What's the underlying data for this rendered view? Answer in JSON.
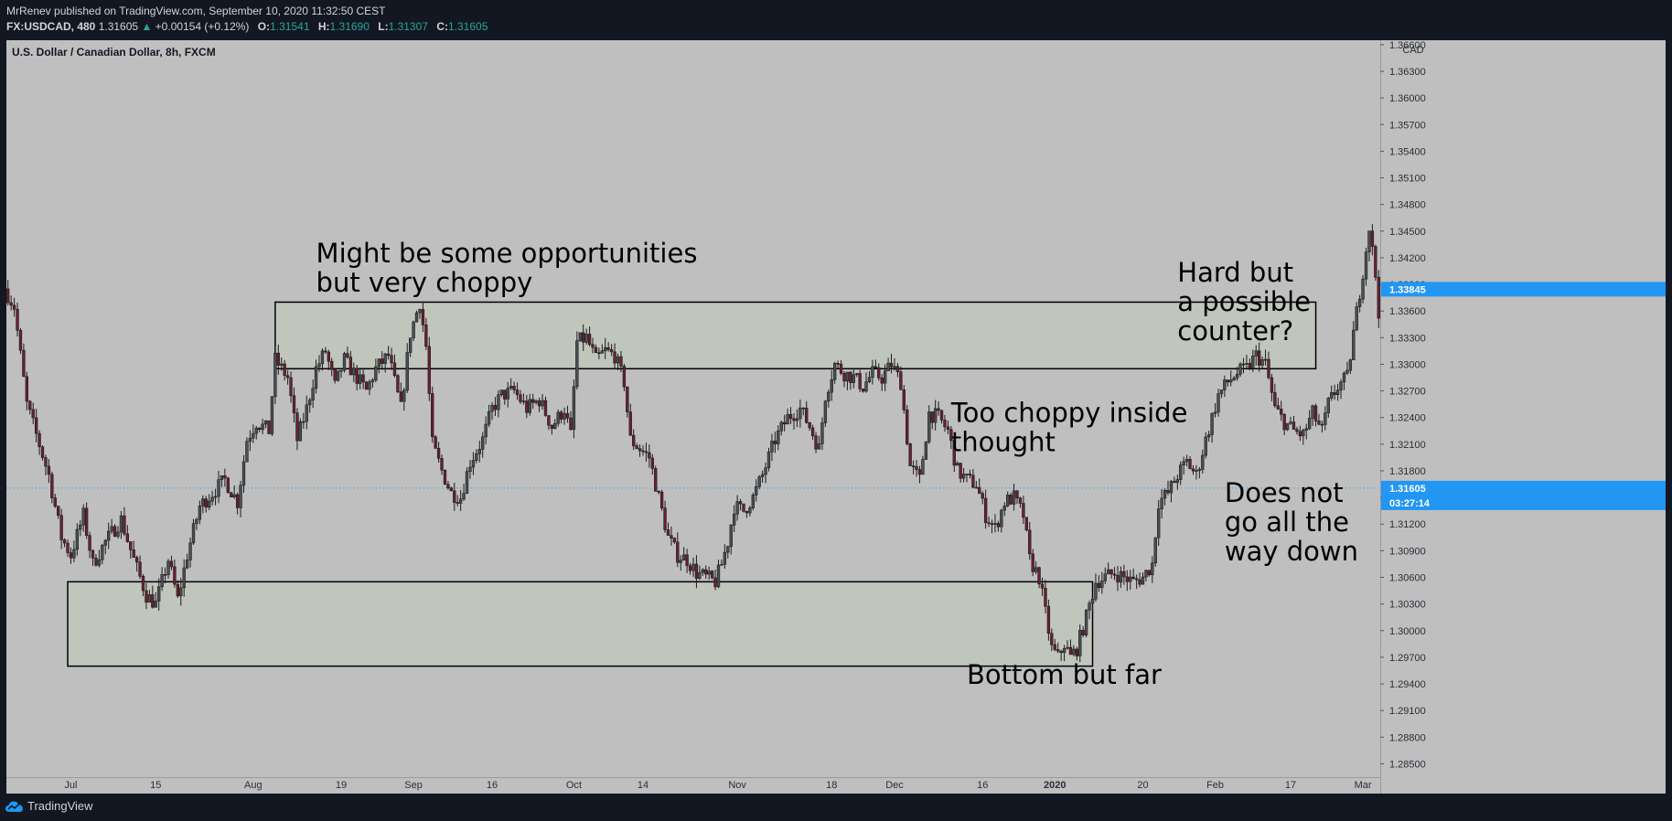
{
  "header": {
    "publisher_line": "MrRenev published on TradingView.com, September 10, 2020 11:32:50 CEST",
    "symbol": "FX:USDCAD, 480",
    "last": "1.31605",
    "change": "+0.00154 (+0.12%)",
    "o_label": "O:",
    "o": "1.31541",
    "h_label": "H:",
    "h": "1.31690",
    "l_label": "L:",
    "l": "1.31307",
    "c_label": "C:",
    "c": "1.31605"
  },
  "footer": {
    "brand": "TradingView"
  },
  "colors": {
    "panel_bg": "#131722",
    "chart_bg": "#bfbfbf",
    "candle": "#1c1c1c",
    "box_fill": "#c0c6bc",
    "accent_up": "#26a69a",
    "price_tag": "#2196f3",
    "pan_text": "#d1d4dc"
  },
  "chart_data": {
    "type": "candlestick",
    "title": "U.S. Dollar / Canadian Dollar, 8h, FXCM",
    "currency": "CAD",
    "ylim": [
      1.2835,
      1.3665
    ],
    "yticks": [
      1.285,
      1.288,
      1.291,
      1.294,
      1.297,
      1.3,
      1.303,
      1.306,
      1.309,
      1.312,
      1.315,
      1.318,
      1.321,
      1.324,
      1.327,
      1.33,
      1.333,
      1.336,
      1.339,
      1.342,
      1.345,
      1.348,
      1.351,
      1.354,
      1.357,
      1.36,
      1.363,
      1.366
    ],
    "ytick_labels": [
      "1.28500",
      "1.28800",
      "1.29100",
      "1.29400",
      "1.29700",
      "1.30000",
      "1.30300",
      "1.30600",
      "1.30900",
      "1.31200",
      "1.31500",
      "1.31800",
      "1.32100",
      "1.32400",
      "1.32700",
      "1.33000",
      "1.33300",
      "1.33600",
      "1.33900",
      "1.34200",
      "1.34500",
      "1.34800",
      "1.35100",
      "1.35400",
      "1.35700",
      "1.36000",
      "1.36300",
      "1.36600"
    ],
    "xlabels": [
      "Jul",
      "15",
      "Aug",
      "19",
      "Sep",
      "16",
      "Oct",
      "14",
      "Nov",
      "18",
      "Dec",
      "16",
      "2020",
      "20",
      "Feb",
      "17",
      "Mar"
    ],
    "xlabel_bars": [
      20,
      47,
      78,
      106,
      129,
      154,
      180,
      202,
      232,
      262,
      282,
      310,
      333,
      361,
      384,
      408,
      431
    ],
    "bar_count": 437,
    "path_points": [
      [
        0,
        1.3385
      ],
      [
        3,
        1.3365
      ],
      [
        7,
        1.3255
      ],
      [
        14,
        1.3175
      ],
      [
        18,
        1.3105
      ],
      [
        21,
        1.3085
      ],
      [
        25,
        1.313
      ],
      [
        28,
        1.3075
      ],
      [
        32,
        1.31
      ],
      [
        37,
        1.3125
      ],
      [
        41,
        1.308
      ],
      [
        45,
        1.304
      ],
      [
        48,
        1.303
      ],
      [
        52,
        1.308
      ],
      [
        55,
        1.3035
      ],
      [
        58,
        1.3085
      ],
      [
        62,
        1.314
      ],
      [
        66,
        1.3155
      ],
      [
        70,
        1.317
      ],
      [
        74,
        1.3145
      ],
      [
        77,
        1.3215
      ],
      [
        80,
        1.3235
      ],
      [
        84,
        1.3225
      ],
      [
        86,
        1.3305
      ],
      [
        90,
        1.3285
      ],
      [
        93,
        1.3215
      ],
      [
        96,
        1.325
      ],
      [
        99,
        1.3295
      ],
      [
        102,
        1.3315
      ],
      [
        105,
        1.3275
      ],
      [
        108,
        1.3305
      ],
      [
        112,
        1.3285
      ],
      [
        115,
        1.327
      ],
      [
        118,
        1.3295
      ],
      [
        122,
        1.331
      ],
      [
        126,
        1.325
      ],
      [
        129,
        1.3335
      ],
      [
        132,
        1.337
      ],
      [
        134,
        1.332
      ],
      [
        136,
        1.321
      ],
      [
        139,
        1.318
      ],
      [
        142,
        1.3155
      ],
      [
        145,
        1.315
      ],
      [
        148,
        1.319
      ],
      [
        152,
        1.3215
      ],
      [
        155,
        1.325
      ],
      [
        158,
        1.3265
      ],
      [
        162,
        1.327
      ],
      [
        166,
        1.325
      ],
      [
        170,
        1.326
      ],
      [
        174,
        1.323
      ],
      [
        178,
        1.325
      ],
      [
        180,
        1.322
      ],
      [
        182,
        1.3325
      ],
      [
        185,
        1.333
      ],
      [
        188,
        1.3305
      ],
      [
        191,
        1.3315
      ],
      [
        194,
        1.331
      ],
      [
        197,
        1.328
      ],
      [
        199,
        1.3215
      ],
      [
        202,
        1.3205
      ],
      [
        205,
        1.3195
      ],
      [
        208,
        1.315
      ],
      [
        211,
        1.3105
      ],
      [
        214,
        1.3085
      ],
      [
        217,
        1.308
      ],
      [
        220,
        1.3065
      ],
      [
        223,
        1.306
      ],
      [
        226,
        1.3055
      ],
      [
        228,
        1.3075
      ],
      [
        230,
        1.31
      ],
      [
        232,
        1.314
      ],
      [
        235,
        1.3135
      ],
      [
        238,
        1.315
      ],
      [
        241,
        1.3175
      ],
      [
        245,
        1.3215
      ],
      [
        249,
        1.324
      ],
      [
        253,
        1.325
      ],
      [
        256,
        1.323
      ],
      [
        259,
        1.3205
      ],
      [
        261,
        1.3265
      ],
      [
        264,
        1.33
      ],
      [
        267,
        1.329
      ],
      [
        270,
        1.3285
      ],
      [
        273,
        1.3275
      ],
      [
        276,
        1.329
      ],
      [
        279,
        1.3285
      ],
      [
        282,
        1.33
      ],
      [
        285,
        1.328
      ],
      [
        288,
        1.3185
      ],
      [
        291,
        1.317
      ],
      [
        294,
        1.3245
      ],
      [
        297,
        1.324
      ],
      [
        300,
        1.3225
      ],
      [
        303,
        1.318
      ],
      [
        306,
        1.317
      ],
      [
        309,
        1.3165
      ],
      [
        312,
        1.313
      ],
      [
        315,
        1.3115
      ],
      [
        318,
        1.3145
      ],
      [
        321,
        1.315
      ],
      [
        324,
        1.313
      ],
      [
        326,
        1.308
      ],
      [
        329,
        1.306
      ],
      [
        331,
        1.302
      ],
      [
        333,
        1.298
      ],
      [
        335,
        1.297
      ],
      [
        337,
        1.2985
      ],
      [
        339,
        1.297
      ],
      [
        341,
        1.298
      ],
      [
        344,
        1.3015
      ],
      [
        347,
        1.3055
      ],
      [
        350,
        1.306
      ],
      [
        353,
        1.3065
      ],
      [
        356,
        1.306
      ],
      [
        359,
        1.3055
      ],
      [
        362,
        1.306
      ],
      [
        365,
        1.3075
      ],
      [
        367,
        1.3145
      ],
      [
        370,
        1.3155
      ],
      [
        373,
        1.3175
      ],
      [
        376,
        1.319
      ],
      [
        379,
        1.3175
      ],
      [
        382,
        1.3215
      ],
      [
        386,
        1.3265
      ],
      [
        389,
        1.328
      ],
      [
        392,
        1.329
      ],
      [
        395,
        1.3295
      ],
      [
        398,
        1.331
      ],
      [
        401,
        1.33
      ],
      [
        404,
        1.325
      ],
      [
        407,
        1.3235
      ],
      [
        410,
        1.3225
      ],
      [
        413,
        1.322
      ],
      [
        416,
        1.3245
      ],
      [
        419,
        1.3225
      ],
      [
        421,
        1.3255
      ],
      [
        424,
        1.3275
      ],
      [
        427,
        1.3285
      ],
      [
        429,
        1.3335
      ],
      [
        432,
        1.3405
      ],
      [
        434,
        1.3455
      ],
      [
        436,
        1.34
      ],
      [
        437,
        1.336
      ],
      [
        440,
        1.3385
      ],
      [
        442,
        1.3345
      ],
      [
        444,
        1.3384
      ]
    ],
    "current_price": 1.31605,
    "current_price_label": "1.31605",
    "countdown": "03:27:14",
    "last_close_tag": 1.33845,
    "last_close_tag_label": "1.33845",
    "zones": [
      {
        "name": "upper-range-box",
        "x0_bar": 85,
        "x1_bar": 416,
        "top": 1.337,
        "bottom": 1.3295
      },
      {
        "name": "lower-range-box",
        "x0_bar": 19,
        "x1_bar": 345,
        "top": 1.3055,
        "bottom": 1.296
      }
    ],
    "annotations": [
      {
        "name": "annotation-choppy",
        "lines": [
          "Might be some opportunities",
          "but very choppy"
        ],
        "bar": 98,
        "y": 1.3415
      },
      {
        "name": "annotation-hard-counter",
        "lines": [
          "Hard but",
          "a possible",
          "counter?"
        ],
        "bar": 372,
        "y": 1.3393
      },
      {
        "name": "annotation-too-choppy",
        "lines": [
          "Too choppy inside",
          "thought"
        ],
        "bar": 300,
        "y": 1.3235
      },
      {
        "name": "annotation-not-all-way",
        "lines": [
          "Does not",
          "go all the",
          "way down"
        ],
        "bar": 387,
        "y": 1.3145
      },
      {
        "name": "annotation-bottom",
        "lines": [
          "Bottom but far"
        ],
        "bar": 305,
        "y": 1.294
      }
    ]
  }
}
